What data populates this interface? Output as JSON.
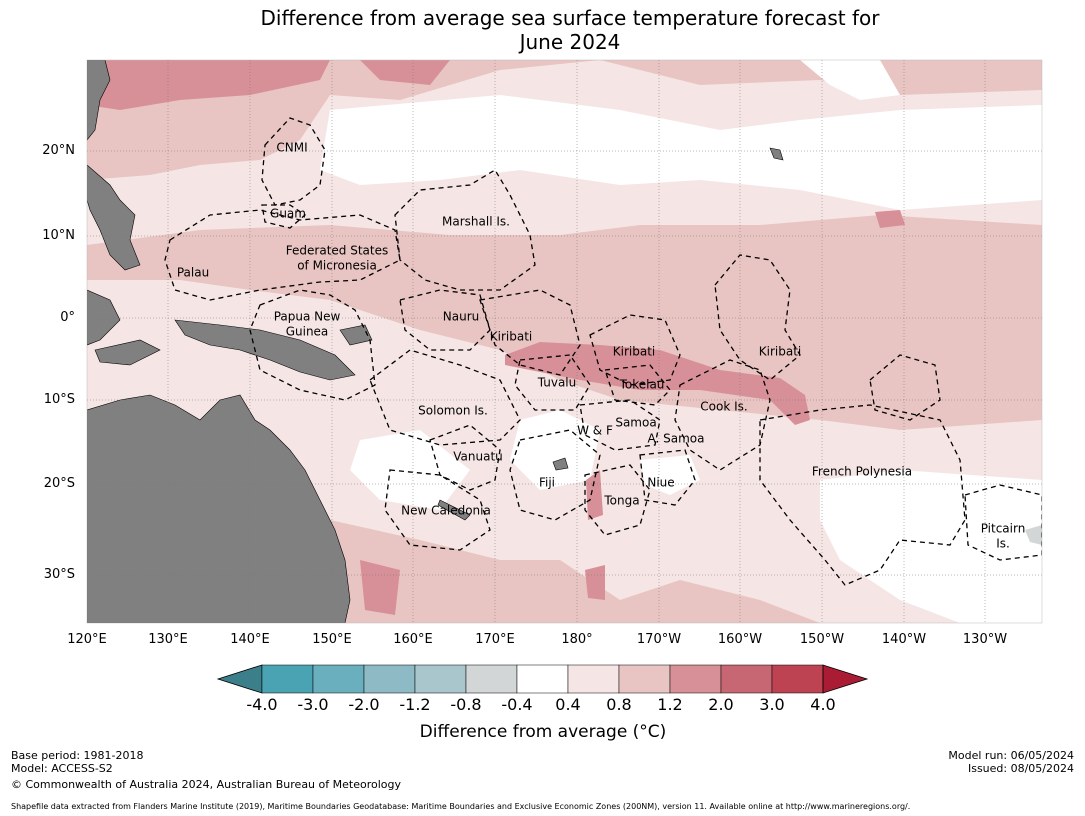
{
  "title": {
    "line1": "Difference from average sea surface temperature forecast for",
    "line2": "June 2024"
  },
  "axes": {
    "lat_ticks": [
      "20°N",
      "10°N",
      "0°",
      "10°S",
      "20°S",
      "30°S"
    ],
    "lon_ticks": [
      "120°E",
      "130°E",
      "140°E",
      "150°E",
      "160°E",
      "170°E",
      "180°",
      "170°W",
      "160°W",
      "150°W",
      "140°W",
      "130°W"
    ]
  },
  "regions": {
    "cnmi": "CNMI",
    "guam": "Guam",
    "marshall": "Marshall Is.",
    "fsm_1": "Federated States",
    "fsm_2": "of Micronesia",
    "palau": "Palau",
    "png_1": "Papua New",
    "png_2": "Guinea",
    "nauru": "Nauru",
    "kiribati_w": "Kiribati",
    "kiribati_c": "Kiribati",
    "kiribati_e": "Kiribati",
    "tuvalu": "Tuvalu",
    "tokelau": "Tokelau",
    "cook": "Cook Is.",
    "solomon": "Solomon Is.",
    "wf": "W & F",
    "samoa": "Samoa",
    "asamoa": "A. Samoa",
    "vanuatu": "Vanuatu",
    "fiji": "Fiji",
    "niue": "Niue",
    "tonga": "Tonga",
    "french_polynesia": "French Polynesia",
    "new_caledonia": "New Caledonia",
    "pitcairn_1": "Pitcairn",
    "pitcairn_2": "Is."
  },
  "colorbar": {
    "ticks": [
      "-4.0",
      "-3.0",
      "-2.0",
      "-1.2",
      "-0.8",
      "-0.4",
      "0.4",
      "0.8",
      "1.2",
      "2.0",
      "3.0",
      "4.0"
    ],
    "colors": [
      "#3b7f8b",
      "#4aa3b2",
      "#6aafbd",
      "#8dbac5",
      "#a9c6cc",
      "#d3d6d6",
      "#ffffff",
      "#f5e6e5",
      "#e8c5c2",
      "#d79097",
      "#c86774",
      "#bd4352",
      "#a91c33"
    ],
    "label": "Difference from average (°C)"
  },
  "legend_colors": {
    "land": "#808080",
    "warm1": "#f5e6e5",
    "warm2": "#e8c5c2",
    "warm3": "#d79097",
    "warm4": "#c86774",
    "neutral": "#ffffff"
  },
  "footer": {
    "base_period": "Base period: 1981-2018",
    "model": "Model: ACCESS-S2",
    "copyright": "© Commonwealth of Australia 2024, Australian Bureau of Meteorology",
    "model_run": "Model run: 06/05/2024",
    "issued": "Issued: 08/05/2024",
    "shapefile": "Shapefile data extracted from Flanders Marine Institute (2019), Maritime Boundaries Geodatabase: Maritime Boundaries and Exclusive Economic Zones (200NM), version 11. Available online at http://www.marineregions.org/."
  }
}
